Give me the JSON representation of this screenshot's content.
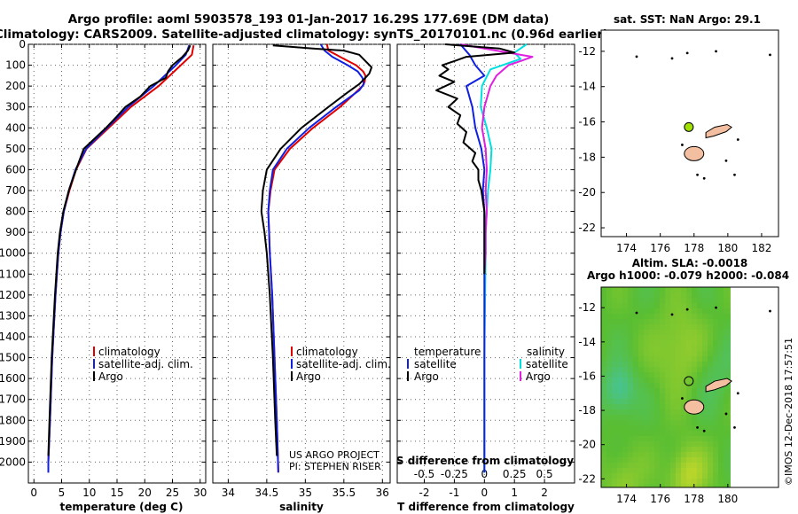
{
  "title": {
    "line1": "Argo profile: aoml 5903578_193 01-Jan-2017 16.29S 177.69E (DM data)",
    "line2": "Climatology: CARS2009. Satellite-adjusted climatology: synTS_20170101.nc (0.96d earlier)"
  },
  "colors": {
    "climatology": "#e00000",
    "satellite": "#1020e0",
    "argo": "#000000",
    "satellite_s": "#00e0e0",
    "argo_s": "#e020e0",
    "land": "#f4bfa0",
    "marker": "#a0e000"
  },
  "credits": {
    "line1": "US ARGO PROJECT",
    "line2": "PI: STEPHEN RISER",
    "stamp": "©IMOS 12-Dec-2018 17:57:51"
  },
  "chart_data": [
    {
      "type": "line",
      "title": "",
      "xlabel": "temperature (deg C)",
      "ylabel": "",
      "xlim": [
        -1,
        31
      ],
      "ylim": [
        2100,
        0
      ],
      "xticks": [
        0,
        5,
        10,
        15,
        20,
        25,
        30
      ],
      "yticks": [
        0,
        100,
        200,
        300,
        400,
        500,
        600,
        700,
        800,
        900,
        1000,
        1100,
        1200,
        1300,
        1400,
        1500,
        1600,
        1700,
        1800,
        1900,
        2000
      ],
      "legend": [
        "climatology",
        "satellite-adj. clim.",
        "Argo"
      ],
      "series": [
        {
          "name": "climatology",
          "depth": [
            5,
            50,
            100,
            150,
            200,
            300,
            400,
            500,
            600,
            700,
            800,
            900,
            1000,
            1200,
            1500,
            1800,
            2000,
            2050
          ],
          "values": [
            28.8,
            28.5,
            26.5,
            24.5,
            22.5,
            17.5,
            13.5,
            9.5,
            7.6,
            6.4,
            5.4,
            4.8,
            4.4,
            3.9,
            3.3,
            2.9,
            2.6,
            2.6
          ]
        },
        {
          "name": "satellite-adj. clim.",
          "depth": [
            5,
            50,
            100,
            150,
            200,
            300,
            400,
            500,
            600,
            700,
            800,
            900,
            1000,
            1200,
            1500,
            1800,
            2000,
            2050
          ],
          "values": [
            28.0,
            27.4,
            25.6,
            23.6,
            21.6,
            17.0,
            13.2,
            9.4,
            7.5,
            6.3,
            5.4,
            4.8,
            4.4,
            3.9,
            3.3,
            2.9,
            2.6,
            2.6
          ]
        },
        {
          "name": "Argo",
          "depth": [
            5,
            30,
            60,
            100,
            130,
            160,
            200,
            250,
            300,
            350,
            400,
            450,
            500,
            550,
            600,
            700,
            800,
            900,
            1000,
            1200,
            1500,
            1800,
            1970
          ],
          "values": [
            28.2,
            27.8,
            26.8,
            25.0,
            24.2,
            23.8,
            21.0,
            19.2,
            16.5,
            14.8,
            13.0,
            11.0,
            9.0,
            8.3,
            7.6,
            6.3,
            5.3,
            4.7,
            4.3,
            3.8,
            3.2,
            2.8,
            2.6
          ]
        }
      ]
    },
    {
      "type": "line",
      "title": "",
      "xlabel": "salinity",
      "ylabel": "",
      "xlim": [
        33.8,
        36.1
      ],
      "ylim": [
        2100,
        0
      ],
      "xticks": [
        34,
        34.5,
        35,
        35.5,
        36
      ],
      "legend": [
        "climatology",
        "satellite-adj. clim.",
        "Argo"
      ],
      "series": [
        {
          "name": "climatology",
          "depth": [
            0,
            30,
            60,
            100,
            130,
            150,
            180,
            200,
            250,
            300,
            400,
            500,
            600,
            700,
            800,
            900,
            1000,
            1200,
            1500,
            1800,
            2050
          ],
          "values": [
            35.28,
            35.3,
            35.45,
            35.66,
            35.75,
            35.78,
            35.77,
            35.74,
            35.6,
            35.45,
            35.1,
            34.8,
            34.6,
            34.55,
            34.52,
            34.53,
            34.54,
            34.57,
            34.6,
            34.63,
            34.65
          ]
        },
        {
          "name": "satellite-adj. clim.",
          "depth": [
            0,
            30,
            60,
            100,
            130,
            160,
            190,
            220,
            260,
            300,
            400,
            500,
            600,
            700,
            800,
            900,
            1000,
            1200,
            1500,
            1800,
            2050
          ],
          "values": [
            35.2,
            35.25,
            35.35,
            35.55,
            35.68,
            35.74,
            35.76,
            35.7,
            35.55,
            35.4,
            35.05,
            34.76,
            34.58,
            34.54,
            34.52,
            34.53,
            34.54,
            34.57,
            34.6,
            34.63,
            34.65
          ]
        },
        {
          "name": "Argo",
          "depth": [
            5,
            20,
            30,
            50,
            80,
            110,
            140,
            160,
            190,
            230,
            300,
            400,
            500,
            600,
            700,
            800,
            900,
            1000,
            1200,
            1500,
            1800,
            1970
          ],
          "values": [
            34.58,
            35.1,
            35.5,
            35.7,
            35.78,
            35.86,
            35.83,
            35.78,
            35.7,
            35.55,
            35.3,
            34.95,
            34.68,
            34.5,
            34.45,
            34.43,
            34.47,
            34.5,
            34.54,
            34.58,
            34.61,
            34.63
          ]
        }
      ]
    },
    {
      "type": "line",
      "title": "",
      "xlabel": "T difference from climatology",
      "ylabel": "",
      "xlim": [
        -2.9,
        3.0
      ],
      "ylim": [
        2100,
        0
      ],
      "xticks": [
        -2,
        -1,
        0,
        1,
        2
      ],
      "secondary_axis": {
        "label": "S difference from climatology",
        "ticks": [
          -0.5,
          -0.25,
          0,
          0.25,
          0.5
        ],
        "tick_labels": [
          "-0.5",
          "-0.25",
          "0",
          "0.25",
          "0.5"
        ]
      },
      "legend_temperature": {
        "heading": "temperature",
        "entries": [
          "satellite",
          "Argo"
        ]
      },
      "legend_salinity": {
        "heading": "salinity",
        "entries": [
          "satellite",
          "Argo"
        ]
      },
      "series": [
        {
          "name": "T satellite",
          "depth": [
            0,
            50,
            100,
            150,
            200,
            300,
            400,
            500,
            600,
            700,
            800,
            900,
            1000,
            1500,
            2000,
            2050
          ],
          "values": [
            -0.8,
            -0.5,
            -0.3,
            0,
            -0.6,
            -0.4,
            -0.3,
            -0.1,
            0,
            -0.05,
            0,
            0,
            0,
            0,
            0,
            0
          ]
        },
        {
          "name": "T Argo",
          "depth": [
            0,
            20,
            40,
            60,
            80,
            100,
            120,
            150,
            180,
            220,
            260,
            300,
            340,
            380,
            420,
            470,
            520,
            560,
            600,
            650,
            700,
            800,
            900,
            1000,
            1100
          ],
          "values": [
            -1.3,
            0.5,
            1.0,
            -0.6,
            -1.0,
            -1.4,
            -1.2,
            -1.5,
            -1.0,
            -1.6,
            -0.9,
            -1.2,
            -0.8,
            -0.9,
            -0.6,
            -0.7,
            -0.3,
            -0.4,
            -0.2,
            -0.2,
            -0.1,
            0,
            0,
            0,
            0
          ]
        },
        {
          "name": "S satellite",
          "depth": [
            0,
            40,
            70,
            120,
            200,
            300,
            400,
            500,
            600,
            700,
            800,
            900,
            1000,
            1500,
            2000,
            2050
          ],
          "values": [
            0.35,
            0.25,
            0.3,
            0.05,
            -0.02,
            -0.03,
            0.02,
            0.06,
            0.05,
            0.03,
            0.02,
            0.01,
            0.01,
            0,
            0,
            0
          ]
        },
        {
          "name": "S Argo",
          "depth": [
            0,
            30,
            60,
            80,
            100,
            150,
            200,
            300,
            400,
            500,
            600,
            700,
            800,
            900,
            1000,
            1100
          ],
          "values": [
            -0.2,
            0.1,
            0.4,
            0.3,
            0.2,
            0.1,
            0.05,
            0,
            -0.02,
            0.01,
            0.02,
            0.01,
            0.02,
            0.01,
            0.01,
            0
          ]
        }
      ]
    },
    {
      "type": "map",
      "title": "sat. SST: NaN Argo: 29.1",
      "xlim": [
        172.5,
        183
      ],
      "ylim": [
        -22.5,
        -10.8
      ],
      "xticks": [
        174,
        176,
        178,
        180,
        182
      ],
      "yticks": [
        -12,
        -14,
        -16,
        -18,
        -20,
        -22
      ],
      "marker": {
        "lon": 177.69,
        "lat": -16.29
      }
    },
    {
      "type": "heatmap",
      "title": "Altim. SLA: -0.0018",
      "subtitle": "Argo h1000: -0.079 h2000: -0.084",
      "xlim": [
        172.5,
        183
      ],
      "ylim": [
        -22.5,
        -10.8
      ],
      "xticks": [
        174,
        176,
        178,
        180
      ],
      "yticks": [
        -12,
        -14,
        -16,
        -18,
        -20,
        -22
      ],
      "marker": {
        "lon": 177.69,
        "lat": -16.29
      }
    }
  ]
}
